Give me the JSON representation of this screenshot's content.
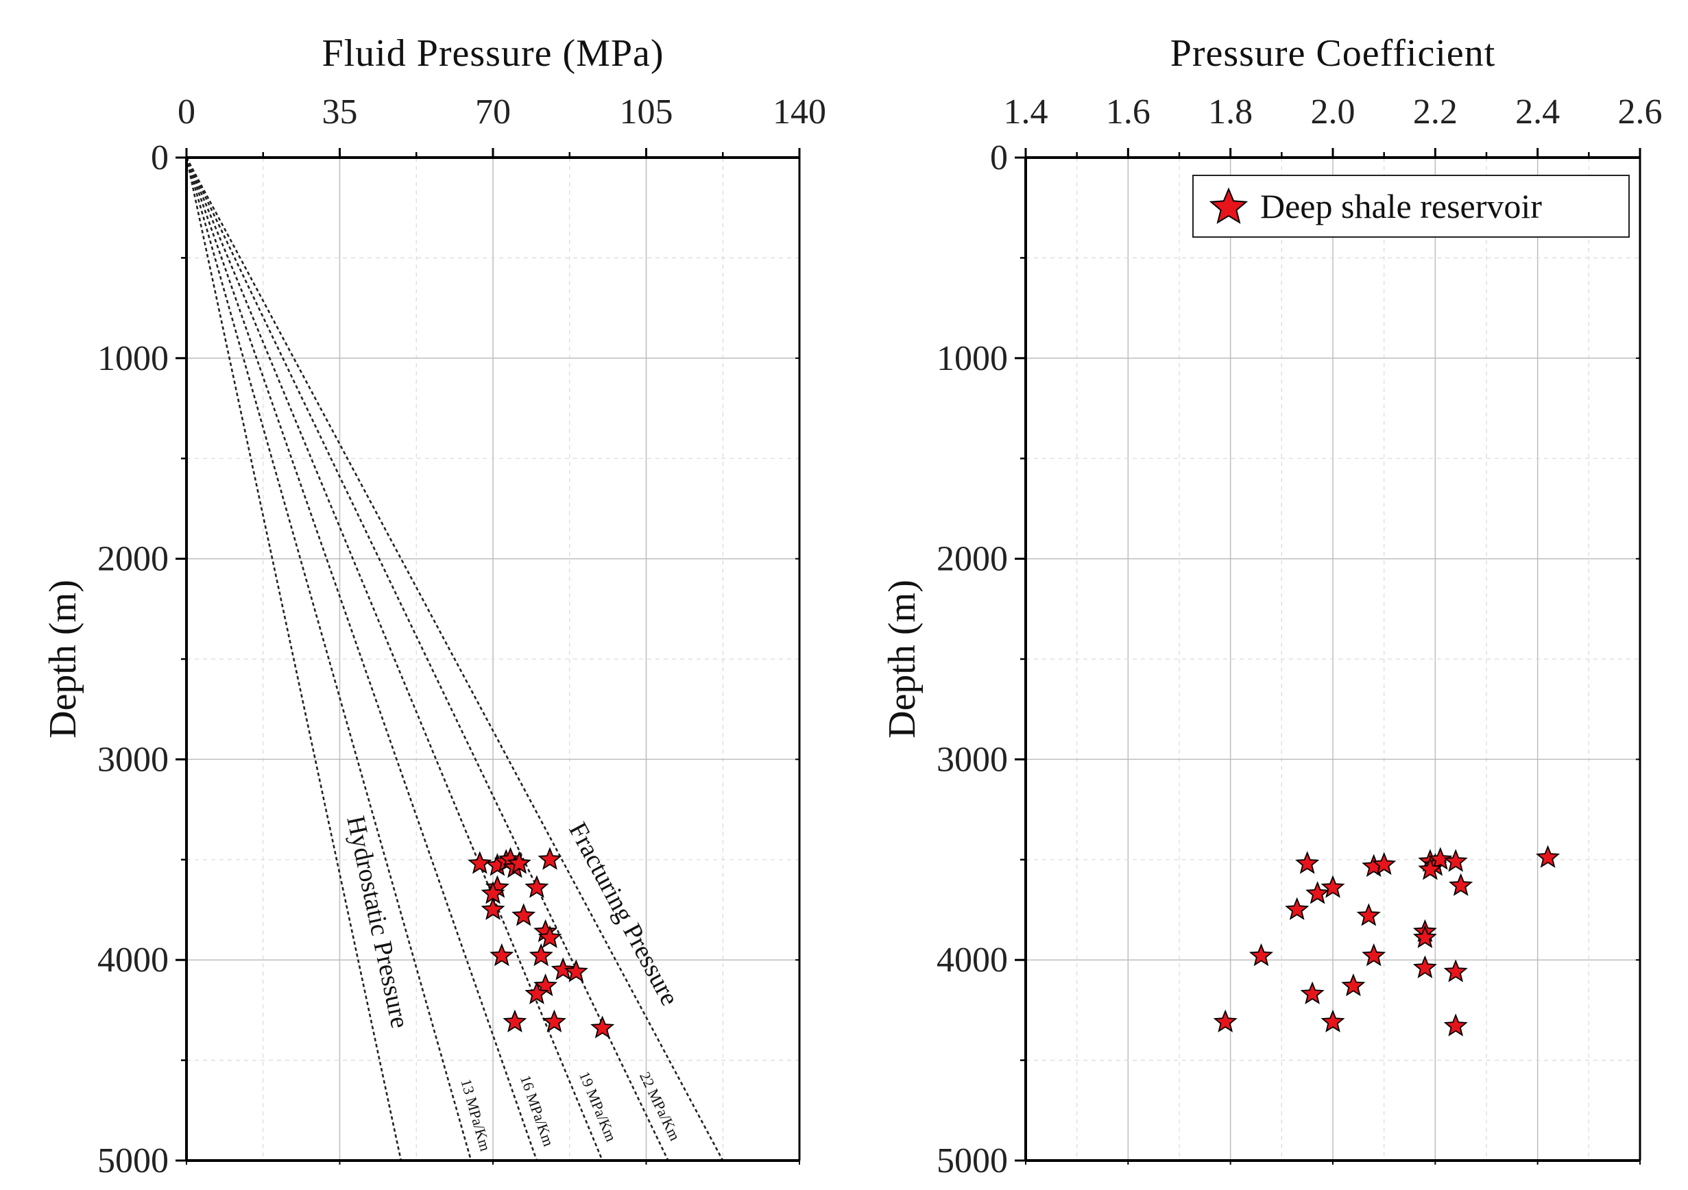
{
  "chart_data": [
    {
      "type": "line",
      "title": "Fluid Pressure (MPa)",
      "xlabel": "Fluid Pressure (MPa)",
      "ylabel": "Depth (m)",
      "xlim": [
        0,
        140
      ],
      "ylim": [
        0,
        5000
      ],
      "x_ticks": [
        "0",
        "35",
        "70",
        "105",
        "140"
      ],
      "y_ticks": [
        "0",
        "1000",
        "2000",
        "3000",
        "4000",
        "5000"
      ],
      "series": [
        {
          "name": "Hydrostatic Pressure",
          "gradient": 9.8,
          "label": "Hydrostatic Pressure"
        },
        {
          "name": "13 MPa/Km",
          "gradient": 13,
          "label": "13 MPa/Km"
        },
        {
          "name": "16 MPa/Km",
          "gradient": 16,
          "label": "16 MPa/Km"
        },
        {
          "name": "19 MPa/Km",
          "gradient": 19,
          "label": "19 MPa/Km"
        },
        {
          "name": "22 MPa/Km",
          "gradient": 22,
          "label": "22 MPa/Km"
        },
        {
          "name": "Fracturing Pressure",
          "gradient": 24.5,
          "label": "Fracturing Pressure"
        }
      ],
      "points": [
        {
          "x": 67,
          "y": 3520
        },
        {
          "x": 71,
          "y": 3530
        },
        {
          "x": 73,
          "y": 3510
        },
        {
          "x": 74,
          "y": 3500
        },
        {
          "x": 75,
          "y": 3540
        },
        {
          "x": 76,
          "y": 3520
        },
        {
          "x": 83,
          "y": 3500
        },
        {
          "x": 71,
          "y": 3640
        },
        {
          "x": 70,
          "y": 3670
        },
        {
          "x": 80,
          "y": 3640
        },
        {
          "x": 70,
          "y": 3750
        },
        {
          "x": 77,
          "y": 3780
        },
        {
          "x": 82,
          "y": 3860
        },
        {
          "x": 83,
          "y": 3890
        },
        {
          "x": 72,
          "y": 3980
        },
        {
          "x": 81,
          "y": 3980
        },
        {
          "x": 86,
          "y": 4050
        },
        {
          "x": 89,
          "y": 4060
        },
        {
          "x": 82,
          "y": 4130
        },
        {
          "x": 80,
          "y": 4170
        },
        {
          "x": 75,
          "y": 4310
        },
        {
          "x": 84,
          "y": 4310
        },
        {
          "x": 95,
          "y": 4340
        }
      ]
    },
    {
      "type": "scatter",
      "title": "Pressure Coefficient",
      "xlabel": "Pressure Coefficient",
      "ylabel": "Depth (m)",
      "xlim": [
        1.4,
        2.6
      ],
      "ylim": [
        0,
        5000
      ],
      "x_ticks": [
        "1.4",
        "1.6",
        "1.8",
        "2.0",
        "2.2",
        "2.4",
        "2.6"
      ],
      "y_ticks": [
        "0",
        "1000",
        "2000",
        "3000",
        "4000",
        "5000"
      ],
      "legend": {
        "label": "Deep shale reservoir",
        "position": "top-right"
      },
      "points": [
        {
          "x": 1.95,
          "y": 3520
        },
        {
          "x": 2.08,
          "y": 3535
        },
        {
          "x": 2.1,
          "y": 3525
        },
        {
          "x": 2.19,
          "y": 3510
        },
        {
          "x": 2.2,
          "y": 3530
        },
        {
          "x": 2.21,
          "y": 3500
        },
        {
          "x": 2.19,
          "y": 3550
        },
        {
          "x": 2.24,
          "y": 3510
        },
        {
          "x": 2.42,
          "y": 3490
        },
        {
          "x": 1.97,
          "y": 3670
        },
        {
          "x": 2.0,
          "y": 3640
        },
        {
          "x": 2.25,
          "y": 3630
        },
        {
          "x": 1.93,
          "y": 3750
        },
        {
          "x": 2.07,
          "y": 3780
        },
        {
          "x": 2.18,
          "y": 3860
        },
        {
          "x": 2.18,
          "y": 3890
        },
        {
          "x": 1.86,
          "y": 3980
        },
        {
          "x": 2.08,
          "y": 3980
        },
        {
          "x": 2.18,
          "y": 4040
        },
        {
          "x": 2.24,
          "y": 4060
        },
        {
          "x": 2.04,
          "y": 4130
        },
        {
          "x": 1.96,
          "y": 4170
        },
        {
          "x": 1.79,
          "y": 4310
        },
        {
          "x": 2.0,
          "y": 4310
        },
        {
          "x": 2.24,
          "y": 4330
        }
      ]
    }
  ]
}
